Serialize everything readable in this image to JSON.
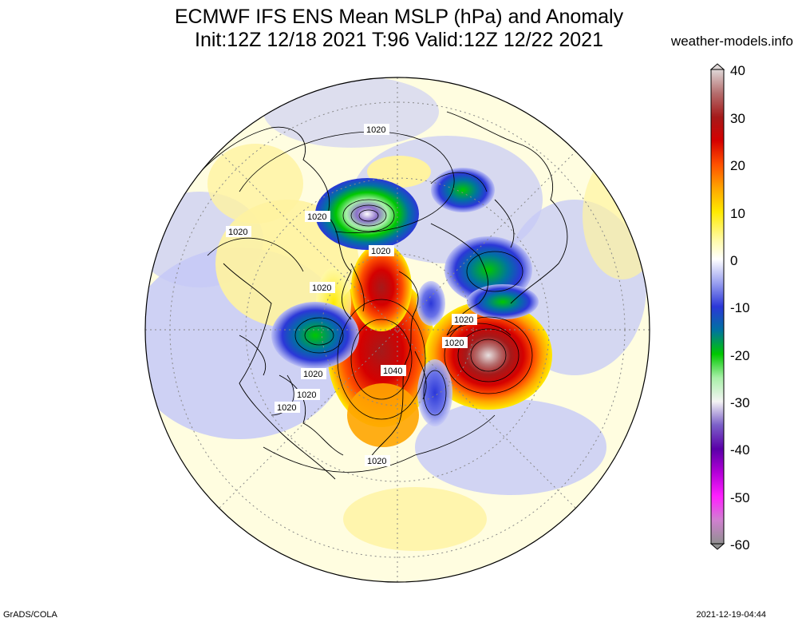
{
  "title": {
    "line1": "ECMWF IFS ENS Mean MSLP (hPa) and Anomaly",
    "line2": "Init:12Z 12/18 2021  T:96 Valid:12Z 12/22 2021"
  },
  "source_site": "weather-models.info",
  "footer": {
    "left": "GrADS/COLA",
    "right": "2021-12-19-04:44"
  },
  "colorbar": {
    "ticks": [
      "40",
      "30",
      "20",
      "10",
      "0",
      "-10",
      "-20",
      "-30",
      "-40",
      "-50",
      "-60"
    ],
    "range": [
      -60,
      40
    ],
    "colors": {
      "40": "#d9cfcf",
      "35": "#b56e6e",
      "30": "#a51a1a",
      "25": "#d50000",
      "20": "#ff5000",
      "15": "#ffa500",
      "10": "#ffea00",
      "5": "#fffaa8",
      "0": "#ffffff",
      "-5": "#b9bdf5",
      "-10": "#2b37d8",
      "-15": "#0073a0",
      "-20": "#00c800",
      "-25": "#a8f0a8",
      "-30": "#f4f4f4",
      "-35": "#7b5fc8",
      "-40": "#5a00a8",
      "-45": "#b400d8",
      "-50": "#ff20ff",
      "-55": "#d080d0",
      "-60": "#808080"
    }
  },
  "contour_labels": {
    "l1": "1020",
    "l2": "1020",
    "l3": "1020",
    "l4": "1020",
    "l5": "1020",
    "l6": "1020",
    "l7": "1020",
    "l8": "1020",
    "l9": "1040",
    "l10": "1020",
    "l11": "1020",
    "l12": "1020"
  },
  "map_colors": {
    "ocean_land_base": "#fffde0",
    "positive_weak": "#fff3a0",
    "negative_weak": "#c6c9f7",
    "coast": "#000000",
    "grid": "#888888"
  }
}
